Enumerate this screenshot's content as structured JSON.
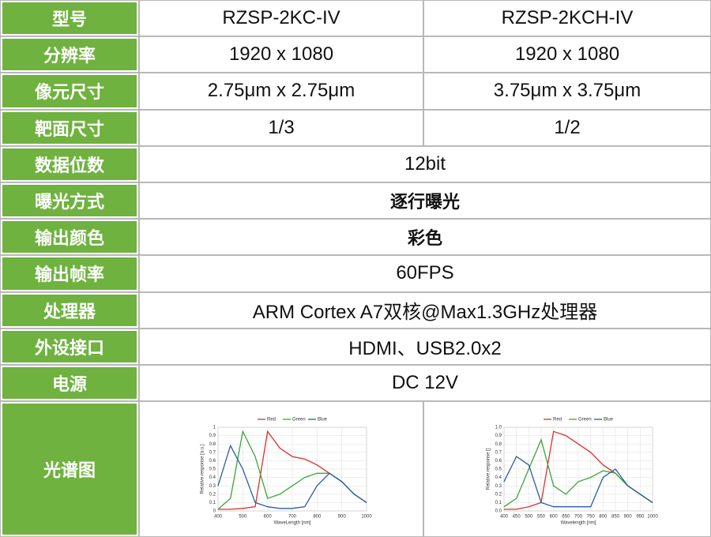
{
  "table": {
    "header": [
      "型号",
      "RZSP-2KC-IV",
      "RZSP-2KCH-IV"
    ],
    "rows": [
      [
        "分辨率",
        "1920 x 1080",
        "1920 x 1080"
      ],
      [
        "像元尺寸",
        "2.75μm x 2.75μm",
        "3.75μm x 3.75μm"
      ],
      [
        "靶面尺寸",
        "1/3",
        "1/2"
      ],
      [
        "数据位数",
        "12bit"
      ],
      [
        "曝光方式",
        "逐行曝光"
      ],
      [
        "输出颜色",
        "彩色"
      ],
      [
        "输出帧率",
        "60FPS"
      ],
      [
        "处理器",
        "ARM Cortex A7双核@Max1.3GHz处理器"
      ],
      [
        "外设接口",
        "HDMI、USB2.0x2"
      ],
      [
        "电源",
        "DC 12V"
      ]
    ],
    "spectrum_label": "光谱图"
  },
  "chart_data": [
    {
      "type": "line",
      "x_label": "WaveLength [nm]",
      "y_label": "Relative response [a.u.]",
      "x": [
        400,
        450,
        500,
        550,
        600,
        650,
        700,
        750,
        800,
        850,
        900,
        950,
        1000
      ],
      "series": [
        {
          "name": "Red",
          "color": "#d9302c",
          "values": [
            0.02,
            0.02,
            0.03,
            0.05,
            0.95,
            0.75,
            0.65,
            0.62,
            0.55,
            0.45,
            0.35,
            0.2,
            0.1
          ]
        },
        {
          "name": "Green",
          "color": "#3aa637",
          "values": [
            0.02,
            0.15,
            0.95,
            0.65,
            0.15,
            0.2,
            0.3,
            0.4,
            0.45,
            0.45,
            0.35,
            0.2,
            0.1
          ]
        },
        {
          "name": "Blue",
          "color": "#2b5ca8",
          "values": [
            0.3,
            0.78,
            0.5,
            0.1,
            0.05,
            0.03,
            0.03,
            0.05,
            0.3,
            0.45,
            0.35,
            0.2,
            0.1
          ]
        }
      ],
      "xlim": [
        400,
        1000
      ],
      "xticks": [
        400,
        500,
        600,
        700,
        800,
        900,
        1000
      ],
      "ylim": [
        0,
        1
      ],
      "yticks": [
        0,
        0.1,
        0.2,
        0.3,
        0.4,
        0.5,
        0.6,
        0.7,
        0.8,
        0.9,
        1
      ],
      "grid": true
    },
    {
      "type": "line",
      "x_label": "Wavelength [nm]",
      "y_label": "Relative response []",
      "x": [
        400,
        450,
        500,
        550,
        600,
        650,
        700,
        750,
        800,
        850,
        900,
        950,
        1000
      ],
      "series": [
        {
          "name": "Red",
          "color": "#d9302c",
          "values": [
            0.02,
            0.02,
            0.05,
            0.1,
            0.95,
            0.9,
            0.8,
            0.7,
            0.55,
            0.45,
            0.3,
            0.2,
            0.1
          ]
        },
        {
          "name": "Green",
          "color": "#3aa637",
          "values": [
            0.05,
            0.15,
            0.5,
            0.85,
            0.3,
            0.2,
            0.35,
            0.4,
            0.48,
            0.45,
            0.3,
            0.2,
            0.1
          ]
        },
        {
          "name": "Blue",
          "color": "#2b5ca8",
          "values": [
            0.35,
            0.65,
            0.55,
            0.1,
            0.05,
            0.05,
            0.05,
            0.05,
            0.4,
            0.5,
            0.3,
            0.2,
            0.1
          ]
        }
      ],
      "xlim": [
        400,
        1000
      ],
      "xticks": [
        400,
        450,
        500,
        550,
        600,
        650,
        700,
        750,
        800,
        850,
        900,
        950,
        1000
      ],
      "ylim": [
        0,
        1
      ],
      "yticks": [
        {
          "value": 0,
          "label": "0.0"
        },
        0.1,
        0.2,
        0.3,
        0.4,
        0.5,
        0.6,
        0.7,
        0.8,
        0.9,
        {
          "value": 1,
          "label": "1.0"
        }
      ],
      "grid": true
    }
  ]
}
